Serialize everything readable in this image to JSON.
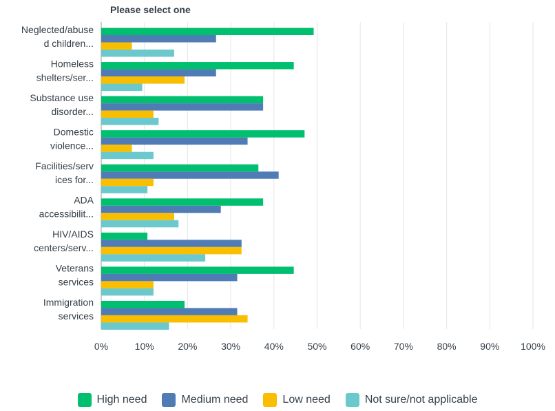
{
  "chart_data": {
    "type": "bar",
    "orientation": "horizontal",
    "title": "Please select one",
    "categories": [
      [
        "Neglected/abuse",
        "d children..."
      ],
      [
        "Homeless",
        "shelters/ser..."
      ],
      [
        "Substance use",
        "disorder..."
      ],
      [
        "Domestic",
        "violence..."
      ],
      [
        "Facilities/serv",
        "ices for..."
      ],
      [
        "ADA",
        "accessibilit..."
      ],
      [
        "HIV/AIDS",
        "centers/serv..."
      ],
      [
        "Veterans",
        "services"
      ],
      [
        "Immigration",
        "services"
      ]
    ],
    "series": [
      {
        "name": "High need",
        "color": "#00bf6f",
        "values": [
          49.2,
          44.6,
          37.5,
          47.1,
          36.4,
          37.5,
          10.7,
          44.6,
          19.3
        ]
      },
      {
        "name": "Medium need",
        "color": "#507cb6",
        "values": [
          26.6,
          26.6,
          37.5,
          33.9,
          41.1,
          27.7,
          32.5,
          31.5,
          31.5
        ]
      },
      {
        "name": "Low need",
        "color": "#f9be00",
        "values": [
          7.1,
          19.3,
          12.1,
          7.1,
          12.1,
          16.9,
          32.5,
          12.1,
          33.9
        ]
      },
      {
        "name": "Not sure/not applicable",
        "color": "#6bc8cd",
        "values": [
          16.9,
          9.5,
          13.3,
          12.1,
          10.7,
          17.9,
          24.1,
          12.1,
          15.7
        ]
      }
    ],
    "xlim": [
      0,
      100
    ],
    "xticks": [
      "0%",
      "10%",
      "20%",
      "30%",
      "40%",
      "50%",
      "60%",
      "70%",
      "80%",
      "90%",
      "100%"
    ],
    "grid": true,
    "legend_position": "bottom"
  }
}
